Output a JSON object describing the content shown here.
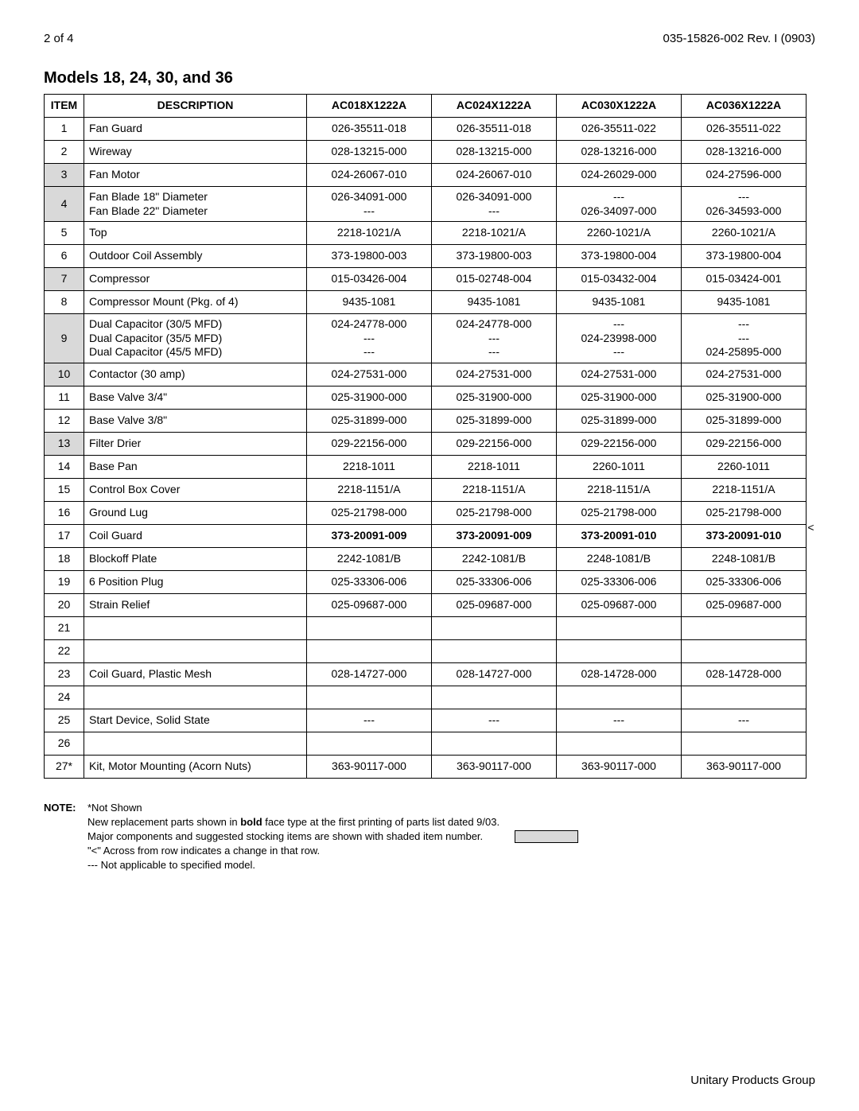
{
  "header": {
    "left": "2 of  4",
    "right": "035-15826-002 Rev. I (0903)"
  },
  "section_title": "Models 18, 24, 30, and 36",
  "columns": [
    "ITEM",
    "DESCRIPTION",
    "AC018X1222A",
    "AC024X1222A",
    "AC030X1222A",
    "AC036X1222A"
  ],
  "rows": [
    {
      "item": "1",
      "desc": "Fan Guard",
      "vals": [
        "026-35511-018",
        "026-35511-018",
        "026-35511-022",
        "026-35511-022"
      ],
      "shaded": false,
      "bold": false,
      "change": ""
    },
    {
      "item": "2",
      "desc": "Wireway",
      "vals": [
        "028-13215-000",
        "028-13215-000",
        "028-13216-000",
        "028-13216-000"
      ],
      "shaded": false,
      "bold": false,
      "change": ""
    },
    {
      "item": "3",
      "desc": "Fan Motor",
      "vals": [
        "024-26067-010",
        "024-26067-010",
        "024-26029-000",
        "024-27596-000"
      ],
      "shaded": true,
      "bold": false,
      "change": ""
    },
    {
      "item": "4",
      "desc": "Fan Blade 18\" Diameter\nFan Blade 22\" Diameter",
      "vals": [
        "026-34091-000\n---",
        "026-34091-000\n---",
        "---\n026-34097-000",
        "---\n026-34593-000"
      ],
      "shaded": true,
      "bold": false,
      "change": "",
      "multiline": true,
      "height": 40
    },
    {
      "item": "5",
      "desc": "Top",
      "vals": [
        "2218-1021/A",
        "2218-1021/A",
        "2260-1021/A",
        "2260-1021/A"
      ],
      "shaded": false,
      "bold": false,
      "change": ""
    },
    {
      "item": "6",
      "desc": "Outdoor Coil Assembly",
      "vals": [
        "373-19800-003",
        "373-19800-003",
        "373-19800-004",
        "373-19800-004"
      ],
      "shaded": false,
      "bold": false,
      "change": ""
    },
    {
      "item": "7",
      "desc": "Compressor",
      "vals": [
        "015-03426-004",
        "015-02748-004",
        "015-03432-004",
        "015-03424-001"
      ],
      "shaded": true,
      "bold": false,
      "change": ""
    },
    {
      "item": "8",
      "desc": "Compressor Mount (Pkg. of 4)",
      "vals": [
        "9435-1081",
        "9435-1081",
        "9435-1081",
        "9435-1081"
      ],
      "shaded": false,
      "bold": false,
      "change": ""
    },
    {
      "item": "9",
      "desc": "Dual Capacitor  (30/5 MFD)\nDual Capacitor  (35/5 MFD)\nDual Capacitor  (45/5 MFD)",
      "vals": [
        "024-24778-000\n---\n---",
        "024-24778-000\n---\n---",
        "---\n024-23998-000\n---",
        "---\n---\n024-25895-000"
      ],
      "shaded": true,
      "bold": false,
      "change": "",
      "multiline": true,
      "height": 56
    },
    {
      "item": "10",
      "desc": "Contactor (30 amp)",
      "vals": [
        "024-27531-000",
        "024-27531-000",
        "024-27531-000",
        "024-27531-000"
      ],
      "shaded": true,
      "bold": false,
      "change": ""
    },
    {
      "item": "11",
      "desc": "Base Valve 3/4\"",
      "vals": [
        "025-31900-000",
        "025-31900-000",
        "025-31900-000",
        "025-31900-000"
      ],
      "shaded": false,
      "bold": false,
      "change": ""
    },
    {
      "item": "12",
      "desc": "Base Valve 3/8\"",
      "vals": [
        "025-31899-000",
        "025-31899-000",
        "025-31899-000",
        "025-31899-000"
      ],
      "shaded": false,
      "bold": false,
      "change": ""
    },
    {
      "item": "13",
      "desc": "Filter Drier",
      "vals": [
        "029-22156-000",
        "029-22156-000",
        "029-22156-000",
        "029-22156-000"
      ],
      "shaded": true,
      "bold": false,
      "change": ""
    },
    {
      "item": "14",
      "desc": "Base Pan",
      "vals": [
        "2218-1011",
        "2218-1011",
        "2260-1011",
        "2260-1011"
      ],
      "shaded": false,
      "bold": false,
      "change": ""
    },
    {
      "item": "15",
      "desc": "Control Box Cover",
      "vals": [
        "2218-1151/A",
        "2218-1151/A",
        "2218-1151/A",
        "2218-1151/A"
      ],
      "shaded": false,
      "bold": false,
      "change": ""
    },
    {
      "item": "16",
      "desc": "Ground Lug",
      "vals": [
        "025-21798-000",
        "025-21798-000",
        "025-21798-000",
        "025-21798-000"
      ],
      "shaded": false,
      "bold": false,
      "change": ""
    },
    {
      "item": "17",
      "desc": "Coil Guard",
      "vals": [
        "373-20091-009",
        "373-20091-009",
        "373-20091-010",
        "373-20091-010"
      ],
      "shaded": false,
      "bold": true,
      "change": "<"
    },
    {
      "item": "18",
      "desc": "Blockoff Plate",
      "vals": [
        "2242-1081/B",
        "2242-1081/B",
        "2248-1081/B",
        "2248-1081/B"
      ],
      "shaded": false,
      "bold": false,
      "change": ""
    },
    {
      "item": "19",
      "desc": "6 Position Plug",
      "vals": [
        "025-33306-006",
        "025-33306-006",
        "025-33306-006",
        "025-33306-006"
      ],
      "shaded": false,
      "bold": false,
      "change": ""
    },
    {
      "item": "20",
      "desc": "Strain Relief",
      "vals": [
        "025-09687-000",
        "025-09687-000",
        "025-09687-000",
        "025-09687-000"
      ],
      "shaded": false,
      "bold": false,
      "change": ""
    },
    {
      "item": "21",
      "desc": "",
      "vals": [
        "",
        "",
        "",
        ""
      ],
      "shaded": false,
      "bold": false,
      "change": ""
    },
    {
      "item": "22",
      "desc": "",
      "vals": [
        "",
        "",
        "",
        ""
      ],
      "shaded": false,
      "bold": false,
      "change": ""
    },
    {
      "item": "23",
      "desc": "Coil Guard, Plastic Mesh",
      "vals": [
        "028-14727-000",
        "028-14727-000",
        "028-14728-000",
        "028-14728-000"
      ],
      "shaded": false,
      "bold": false,
      "change": ""
    },
    {
      "item": "24",
      "desc": "",
      "vals": [
        "",
        "",
        "",
        ""
      ],
      "shaded": false,
      "bold": false,
      "change": ""
    },
    {
      "item": "25",
      "desc": "Start Device, Solid State",
      "vals": [
        "---",
        "---",
        "---",
        "---"
      ],
      "shaded": false,
      "bold": false,
      "change": ""
    },
    {
      "item": "26",
      "desc": "",
      "vals": [
        "",
        "",
        "",
        ""
      ],
      "shaded": false,
      "bold": false,
      "change": ""
    },
    {
      "item": "27*",
      "desc": "Kit, Motor Mounting (Acorn Nuts)",
      "vals": [
        "363-90117-000",
        "363-90117-000",
        "363-90117-000",
        "363-90117-000"
      ],
      "shaded": false,
      "bold": false,
      "change": ""
    }
  ],
  "row_default_height": 29,
  "notes": {
    "label": "NOTE:",
    "lines": [
      "*Not Shown",
      "New replacement parts shown in <b>bold</b> face type at the first printing of parts list dated 9/03.",
      "Major components and suggested stocking items are shown with shaded item number.",
      "\"<\" Across from row indicates a change in that row.",
      "--- Not applicable to specified model."
    ],
    "shade_after_line": 2
  },
  "footer": "Unitary Products Group"
}
